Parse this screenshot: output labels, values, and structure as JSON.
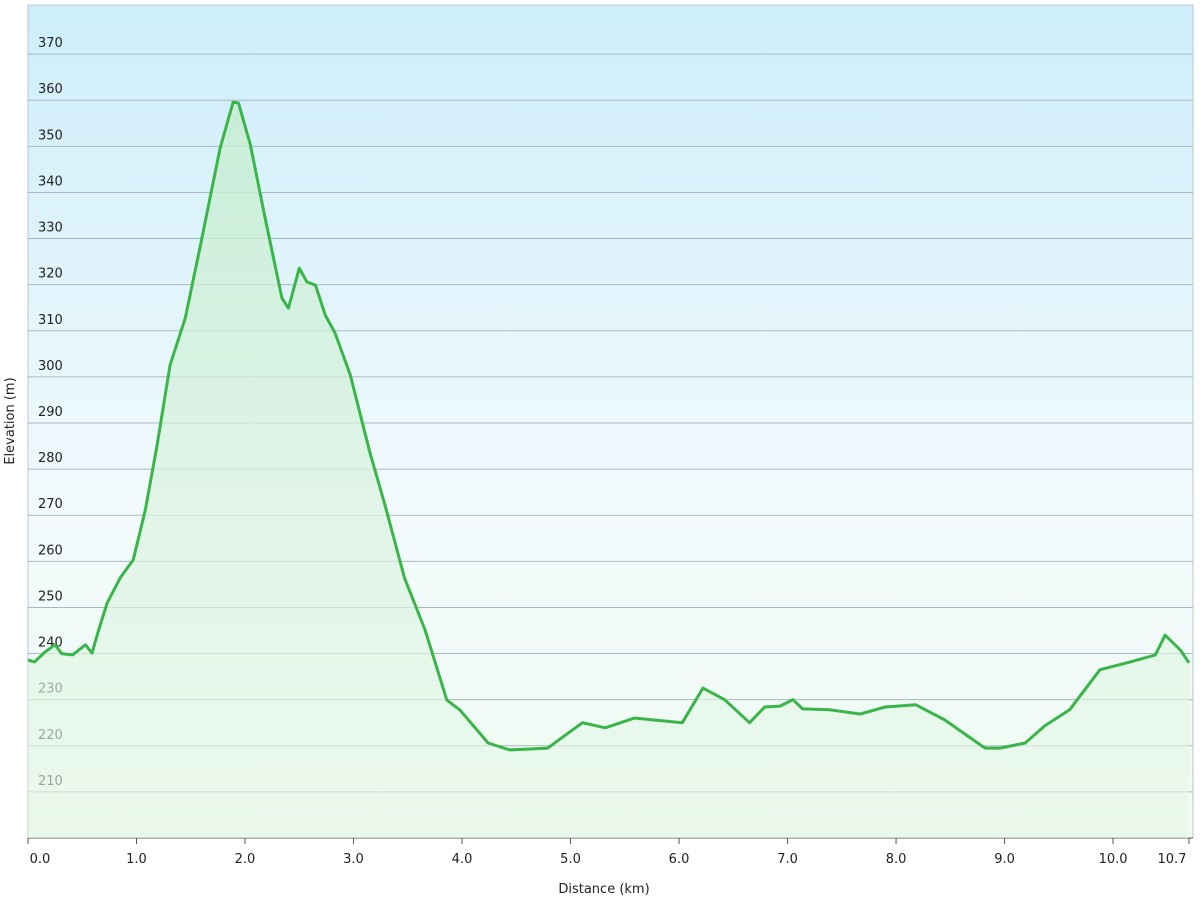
{
  "chart_data": {
    "type": "area",
    "x_label": "Distance  (km)",
    "y_label": "Elevation (m)",
    "color": "#39b54a",
    "xlim": [
      0,
      10.7
    ],
    "ylim": [
      200,
      380
    ],
    "xticks": [
      {
        "value": 0,
        "label": "0.0"
      },
      {
        "value": 1,
        "label": "1.0"
      },
      {
        "value": 2,
        "label": "2.0"
      },
      {
        "value": 3,
        "label": "3.0"
      },
      {
        "value": 4,
        "label": "4.0"
      },
      {
        "value": 5,
        "label": "5.0"
      },
      {
        "value": 6,
        "label": "6.0"
      },
      {
        "value": 7,
        "label": "7.0"
      },
      {
        "value": 8,
        "label": "8.0"
      },
      {
        "value": 9,
        "label": "9.0"
      },
      {
        "value": 10,
        "label": "10.0"
      },
      10.7
    ],
    "yticks": [
      210,
      220,
      230,
      240,
      250,
      260,
      270,
      280,
      290,
      300,
      310,
      320,
      330,
      340,
      350,
      360,
      370
    ],
    "grid": true,
    "x": [
      0,
      0.06,
      0.16,
      0.25,
      0.31,
      0.41,
      0.53,
      0.59,
      0.65,
      0.73,
      0.85,
      0.97,
      1.08,
      1.19,
      1.31,
      1.45,
      1.59,
      1.77,
      1.89,
      1.94,
      2.05,
      2.18,
      2.34,
      2.4,
      2.5,
      2.57,
      2.65,
      2.74,
      2.83,
      2.97,
      3.15,
      3.29,
      3.47,
      3.66,
      3.86,
      3.98,
      4.24,
      4.44,
      4.63,
      4.79,
      5.11,
      5.32,
      5.59,
      6.03,
      6.22,
      6.42,
      6.65,
      6.79,
      6.93,
      7.05,
      7.14,
      7.39,
      7.67,
      7.9,
      8.18,
      8.45,
      8.82,
      8.96,
      9.19,
      9.37,
      9.6,
      9.88,
      10.16,
      10.39,
      10.48,
      10.62,
      10.7
    ],
    "values": [
      238.6,
      238.2,
      240.4,
      241.9,
      240,
      239.7,
      241.9,
      240.1,
      245,
      251,
      256.4,
      260.3,
      271,
      285.2,
      302.6,
      312.8,
      328.6,
      349.6,
      359.6,
      359.4,
      350.3,
      335.1,
      317.1,
      314.9,
      323.6,
      320.6,
      319.9,
      313.4,
      309.5,
      300.4,
      283.7,
      272.2,
      256.4,
      245.1,
      229.9,
      227.8,
      220.6,
      219.1,
      219.3,
      219.5,
      225,
      223.9,
      226,
      225,
      232.5,
      230,
      225,
      228.4,
      228.6,
      230,
      228,
      227.8,
      226.9,
      228.4,
      228.9,
      225.6,
      219.5,
      219.5,
      220.6,
      224.3,
      227.8,
      236.5,
      238.2,
      239.7,
      244,
      240.8,
      238
    ]
  }
}
